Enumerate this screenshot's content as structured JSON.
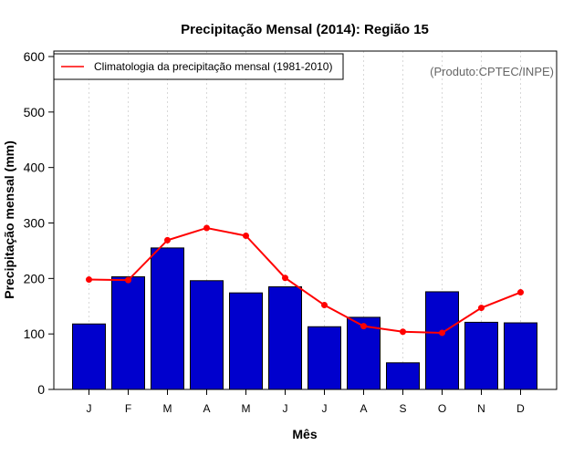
{
  "chart_data": {
    "type": "bar",
    "title": "Precipitação Mensal (2014): Região 15",
    "xlabel": "Mês",
    "ylabel": "Precipitação mensal (mm)",
    "ylim": [
      0,
      600
    ],
    "yticks": [
      0,
      100,
      200,
      300,
      400,
      500,
      600
    ],
    "categories": [
      "J",
      "F",
      "M",
      "A",
      "M",
      "J",
      "J",
      "A",
      "S",
      "O",
      "N",
      "D"
    ],
    "series": [
      {
        "name": "Precipitação mensal (2014)",
        "type": "bar",
        "color": "#0000CD",
        "values": [
          118,
          203,
          255,
          196,
          174,
          185,
          113,
          130,
          48,
          176,
          121,
          120
        ]
      },
      {
        "name": "Climatologia da precipitação mensal (1981-2010)",
        "type": "line",
        "color": "#FF0000",
        "values": [
          198,
          197,
          269,
          291,
          277,
          201,
          152,
          114,
          104,
          102,
          147,
          175
        ]
      }
    ],
    "legend": {
      "position": "top-left",
      "entries": [
        "Climatologia da precipitação mensal (1981-2010)"
      ]
    },
    "annotation": "(Produto:CPTEC/INPE)",
    "grid": "vertical-dashed"
  },
  "colors": {
    "bar_fill": "#0000CD",
    "line": "#FF0000",
    "grid": "#d8d8d8",
    "annotation": "#666666"
  }
}
